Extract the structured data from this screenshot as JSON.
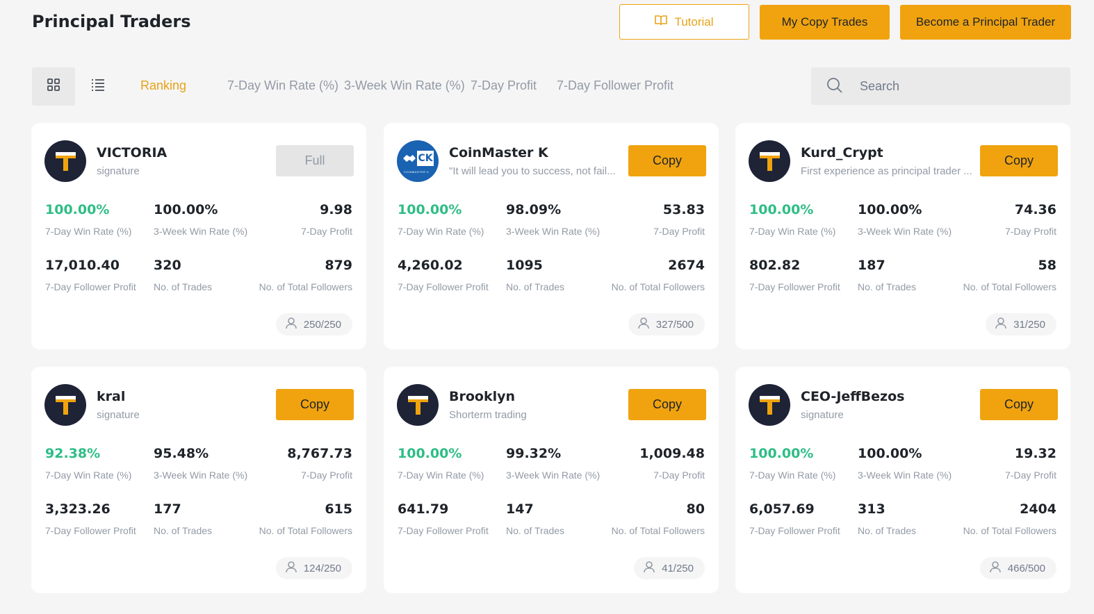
{
  "header": {
    "title": "Principal Traders",
    "tutorial_label": "Tutorial",
    "my_copy_trades_label": "My Copy Trades",
    "become_label": "Become a Principal Trader"
  },
  "toolbar": {
    "tabs": [
      {
        "label": "Ranking",
        "active": true
      },
      {
        "label": "7-Day Win Rate (%)"
      },
      {
        "label": "3-Week Win Rate (%)"
      },
      {
        "label": "7-Day Profit"
      },
      {
        "label": "7-Day Follower Profit"
      }
    ],
    "search_placeholder": "Search"
  },
  "labels": {
    "win7": "7-Day Win Rate (%)",
    "win3w": "3-Week Win Rate (%)",
    "profit7": "7-Day Profit",
    "follower_profit": "7-Day Follower Profit",
    "trades": "No. of Trades",
    "total_followers": "No. of Total Followers"
  },
  "colors": {
    "accent": "#f0a30f",
    "positive": "#2ebd85",
    "muted": "#929aa5"
  },
  "traders": [
    {
      "name": "VICTORIA",
      "desc": "signature",
      "avatar": "t-logo",
      "action": "Full",
      "win7": "100.00%",
      "win3w": "100.00%",
      "profit7": "9.98",
      "follower_profit": "17,010.40",
      "trades": "320",
      "followers": "879",
      "slots": "250/250"
    },
    {
      "name": "CoinMaster K",
      "desc": "\"It will lead you to success, not fail...",
      "avatar": "ck-logo",
      "action": "Copy",
      "win7": "100.00%",
      "win3w": "98.09%",
      "profit7": "53.83",
      "follower_profit": "4,260.02",
      "trades": "1095",
      "followers": "2674",
      "slots": "327/500"
    },
    {
      "name": "Kurd_Crypt",
      "desc": "First experience as principal trader ...",
      "avatar": "t-logo",
      "action": "Copy",
      "win7": "100.00%",
      "win3w": "100.00%",
      "profit7": "74.36",
      "follower_profit": "802.82",
      "trades": "187",
      "followers": "58",
      "slots": "31/250"
    },
    {
      "name": "kral",
      "desc": "signature",
      "avatar": "t-logo",
      "action": "Copy",
      "win7": "92.38%",
      "win3w": "95.48%",
      "profit7": "8,767.73",
      "follower_profit": "3,323.26",
      "trades": "177",
      "followers": "615",
      "slots": "124/250"
    },
    {
      "name": "Brooklyn",
      "desc": "Shorterm trading",
      "avatar": "t-logo",
      "action": "Copy",
      "win7": "100.00%",
      "win3w": "99.32%",
      "profit7": "1,009.48",
      "follower_profit": "641.79",
      "trades": "147",
      "followers": "80",
      "slots": "41/250"
    },
    {
      "name": "CEO-JeffBezos",
      "desc": "signature",
      "avatar": "t-logo",
      "action": "Copy",
      "win7": "100.00%",
      "win3w": "100.00%",
      "profit7": "19.32",
      "follower_profit": "6,057.69",
      "trades": "313",
      "followers": "2404",
      "slots": "466/500"
    }
  ]
}
